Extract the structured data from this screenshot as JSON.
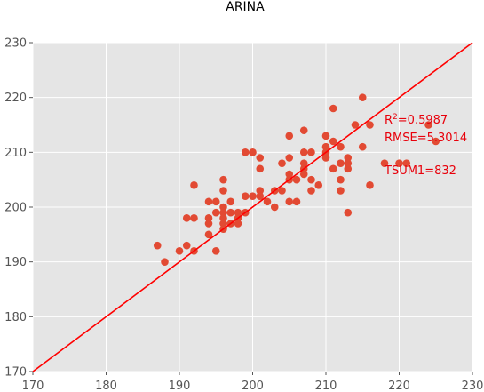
{
  "chart_data": {
    "type": "scatter",
    "title": "ARINA",
    "xlabel": "",
    "ylabel": "",
    "xlim": [
      170,
      230
    ],
    "ylim": [
      170,
      230
    ],
    "xticks": [
      "170",
      "180",
      "190",
      "200",
      "210",
      "220",
      "230"
    ],
    "yticks": [
      "170",
      "180",
      "190",
      "200",
      "210",
      "220",
      "230"
    ],
    "grid": true,
    "background": "#e5e5e5",
    "point_color": "#e24a33",
    "line_color": "#ff0000",
    "reference_line": {
      "from": [
        170,
        170
      ],
      "to": [
        230,
        230
      ]
    },
    "annotations": {
      "r2_base": "R",
      "r2_sup": "2",
      "r2_value": "=0.5987",
      "rmse": "RMSE=5.3014",
      "tsum": "TSUM1=832"
    },
    "points": [
      [
        187,
        193
      ],
      [
        188,
        190
      ],
      [
        190,
        192
      ],
      [
        191,
        198
      ],
      [
        191,
        193
      ],
      [
        192,
        198
      ],
      [
        192,
        204
      ],
      [
        192,
        192
      ],
      [
        194,
        201
      ],
      [
        194,
        198
      ],
      [
        194,
        197
      ],
      [
        194,
        195
      ],
      [
        195,
        201
      ],
      [
        195,
        199
      ],
      [
        195,
        192
      ],
      [
        196,
        205
      ],
      [
        196,
        203
      ],
      [
        196,
        200
      ],
      [
        196,
        199
      ],
      [
        196,
        198
      ],
      [
        196,
        197
      ],
      [
        196,
        196
      ],
      [
        197,
        201
      ],
      [
        197,
        199
      ],
      [
        197,
        197
      ],
      [
        198,
        199
      ],
      [
        198,
        198
      ],
      [
        198,
        197
      ],
      [
        199,
        210
      ],
      [
        199,
        202
      ],
      [
        199,
        199
      ],
      [
        200,
        210
      ],
      [
        200,
        202
      ],
      [
        201,
        209
      ],
      [
        201,
        207
      ],
      [
        201,
        203
      ],
      [
        201,
        202
      ],
      [
        202,
        201
      ],
      [
        203,
        203
      ],
      [
        203,
        200
      ],
      [
        204,
        208
      ],
      [
        204,
        203
      ],
      [
        205,
        213
      ],
      [
        205,
        209
      ],
      [
        205,
        206
      ],
      [
        205,
        205
      ],
      [
        205,
        201
      ],
      [
        206,
        205
      ],
      [
        206,
        201
      ],
      [
        207,
        214
      ],
      [
        207,
        210
      ],
      [
        207,
        208
      ],
      [
        207,
        207
      ],
      [
        207,
        206
      ],
      [
        208,
        210
      ],
      [
        208,
        205
      ],
      [
        208,
        203
      ],
      [
        209,
        204
      ],
      [
        210,
        213
      ],
      [
        210,
        211
      ],
      [
        210,
        210
      ],
      [
        210,
        209
      ],
      [
        211,
        218
      ],
      [
        211,
        212
      ],
      [
        211,
        207
      ],
      [
        212,
        211
      ],
      [
        212,
        208
      ],
      [
        212,
        205
      ],
      [
        212,
        203
      ],
      [
        213,
        209
      ],
      [
        213,
        208
      ],
      [
        213,
        207
      ],
      [
        213,
        199
      ],
      [
        214,
        215
      ],
      [
        215,
        220
      ],
      [
        215,
        211
      ],
      [
        216,
        215
      ],
      [
        216,
        204
      ],
      [
        218,
        208
      ],
      [
        220,
        208
      ],
      [
        221,
        208
      ],
      [
        224,
        215
      ],
      [
        225,
        212
      ]
    ]
  }
}
